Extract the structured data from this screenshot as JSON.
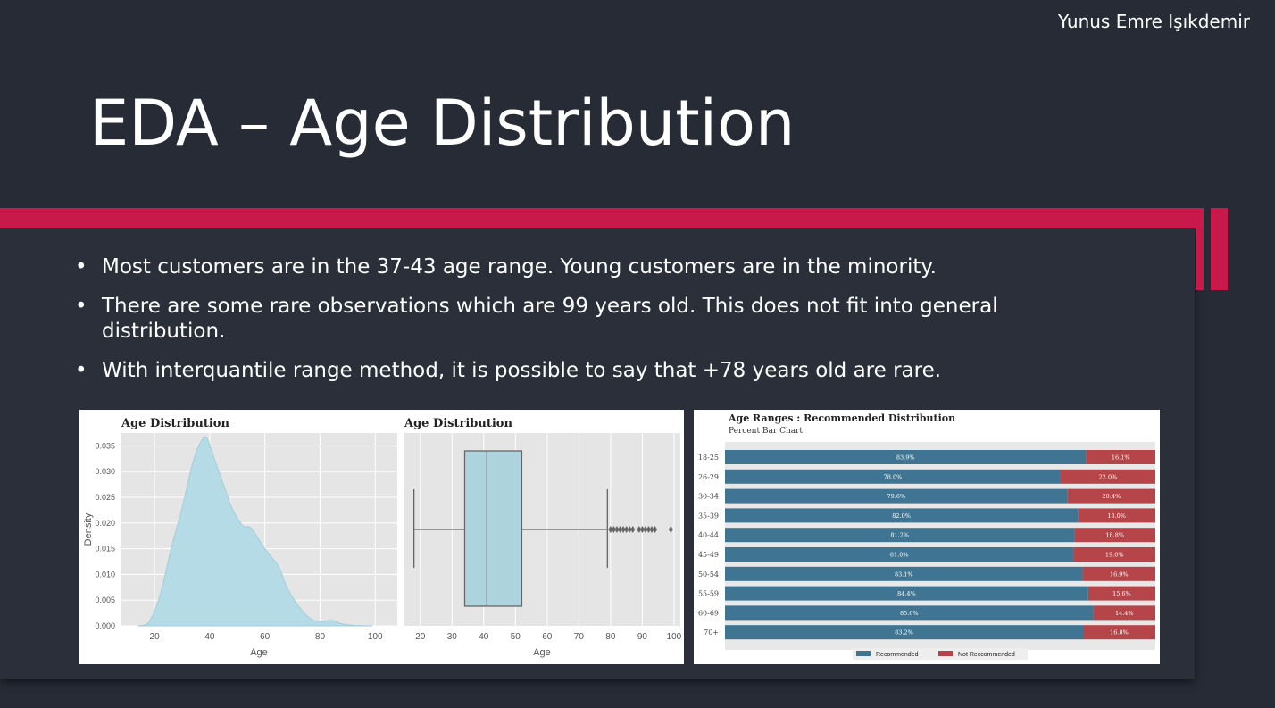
{
  "header": {
    "author": "Yunus Emre Işıkdemir",
    "title": "EDA – Age Distribution"
  },
  "bullets": [
    "Most customers are in the 37-43 age range. Young customers are in the minority.",
    "There are some rare observations which are 99 years old.  This does not fit into general distribution.",
    " With interquantile range method, it is possible to say that +78 years old are rare."
  ],
  "colors": {
    "accent": "#c8194a",
    "kde_fill": "#b4dbe6",
    "recommended": "#3f7592",
    "not_recommended": "#b54548"
  },
  "chart_data": [
    {
      "type": "area",
      "title": "Age Distribution",
      "xlabel": "Age",
      "ylabel": "Density",
      "xlim": [
        8,
        108
      ],
      "ylim": [
        0,
        0.0375
      ],
      "xticks": [
        "20",
        "40",
        "60",
        "80",
        "100"
      ],
      "yticks": [
        "0.000",
        "0.005",
        "0.010",
        "0.015",
        "0.020",
        "0.025",
        "0.030",
        "0.035"
      ],
      "x": [
        14,
        18,
        22,
        26,
        30,
        34,
        37,
        39,
        42,
        46,
        48,
        52,
        55,
        60,
        65,
        68,
        72,
        76,
        80,
        84,
        88,
        92,
        99
      ],
      "y": [
        0.0,
        0.0008,
        0.006,
        0.015,
        0.023,
        0.032,
        0.036,
        0.0365,
        0.032,
        0.026,
        0.023,
        0.0195,
        0.019,
        0.015,
        0.0115,
        0.0075,
        0.004,
        0.0016,
        0.0008,
        0.0011,
        0.0004,
        0.0001,
        0.0
      ],
      "grid": true
    },
    {
      "type": "box",
      "title": "Age Distribution",
      "xlabel": "Age",
      "xlim": [
        15,
        102
      ],
      "xticks": [
        "20",
        "30",
        "40",
        "50",
        "60",
        "70",
        "80",
        "90",
        "100"
      ],
      "min": 18,
      "q1": 34,
      "median": 41,
      "q3": 52,
      "max": 79,
      "outliers": [
        80,
        81,
        82,
        83,
        84,
        85,
        86,
        87,
        89,
        90,
        91,
        92,
        93,
        94,
        99
      ],
      "grid": true
    },
    {
      "type": "bar",
      "title": "Age Ranges : Recommended Distribution",
      "subtitle": "Percent Bar Chart",
      "categories": [
        "18-25",
        "26-29",
        "30-34",
        "35-39",
        "40-44",
        "45-49",
        "50-54",
        "55-59",
        "60-69",
        "70+"
      ],
      "series": [
        {
          "name": "Recommended",
          "values": [
            83.9,
            78.0,
            79.6,
            82.0,
            81.2,
            81.0,
            83.1,
            84.4,
            85.6,
            83.2
          ],
          "labels": [
            "83.9%",
            "78.0%",
            "79.6%",
            "82.0%",
            "81.2%",
            "81.0%",
            "83.1%",
            "84.4%",
            "85.6%",
            "83.2%"
          ]
        },
        {
          "name": "Not Reccommended",
          "values": [
            16.1,
            22.0,
            20.4,
            18.0,
            18.8,
            19.0,
            16.9,
            15.6,
            14.4,
            16.8
          ],
          "labels": [
            "16.1%",
            "22.0%",
            "20.4%",
            "18.0%",
            "18.8%",
            "19.0%",
            "16.9%",
            "15.6%",
            "14.4%",
            "16.8%"
          ]
        }
      ],
      "stacked": true,
      "orientation": "horizontal",
      "xlim": [
        0,
        100
      ],
      "legend": "bottom-center"
    }
  ]
}
